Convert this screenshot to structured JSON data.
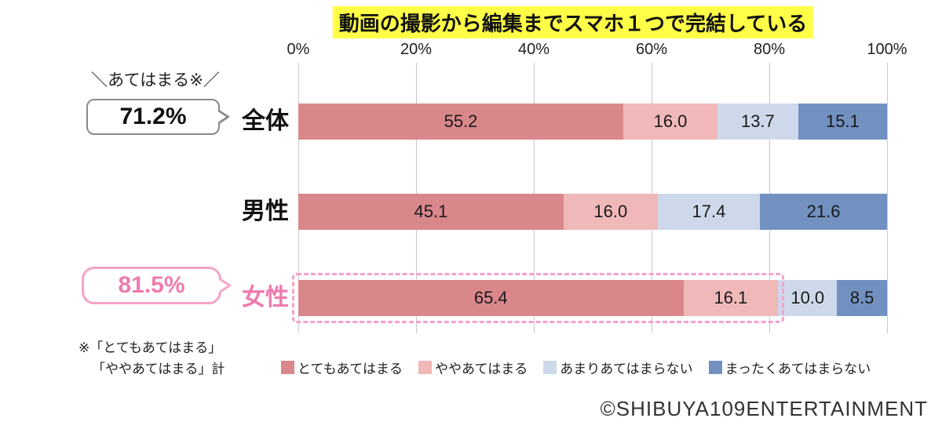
{
  "title": "動画の撮影から編集までスマホ１つで完結している",
  "title_highlight_color": "#ffff47",
  "chart_data": {
    "type": "bar",
    "orientation": "horizontal",
    "stacked": true,
    "grid": true,
    "legend_position": "bottom",
    "categories": [
      "全体",
      "男性",
      "女性"
    ],
    "series": [
      {
        "name": "とてもあてはまる",
        "color": "#d9878b",
        "values": [
          "55.2",
          "45.1",
          "65.4"
        ]
      },
      {
        "name": "ややあてはまる",
        "color": "#f0b8b8",
        "values": [
          "16.0",
          "16.0",
          "16.1"
        ]
      },
      {
        "name": "あまりあてはまらない",
        "color": "#cdd9eb",
        "values": [
          "13.7",
          "17.4",
          "10.0"
        ]
      },
      {
        "name": "まったくあてはまらない",
        "color": "#7291c1",
        "values": [
          "15.1",
          "21.6",
          "8.5"
        ]
      }
    ],
    "x_ticks": [
      "0%",
      "20%",
      "40%",
      "60%",
      "80%",
      "100%"
    ],
    "xlim": [
      0,
      100
    ]
  },
  "annotations": {
    "callout_caption": "＼あてはまる※／",
    "total_callout": "71.2%",
    "female_callout": "81.5%",
    "female_highlight_span": 81.5,
    "pink_text": "#ef7bad",
    "pink_border": "#f5a3c8"
  },
  "footnote": {
    "line1": "※「とてもあてはまる」",
    "line2": "「ややあてはまる」計"
  },
  "copyright": "©SHIBUYA109ENTERTAINMENT"
}
